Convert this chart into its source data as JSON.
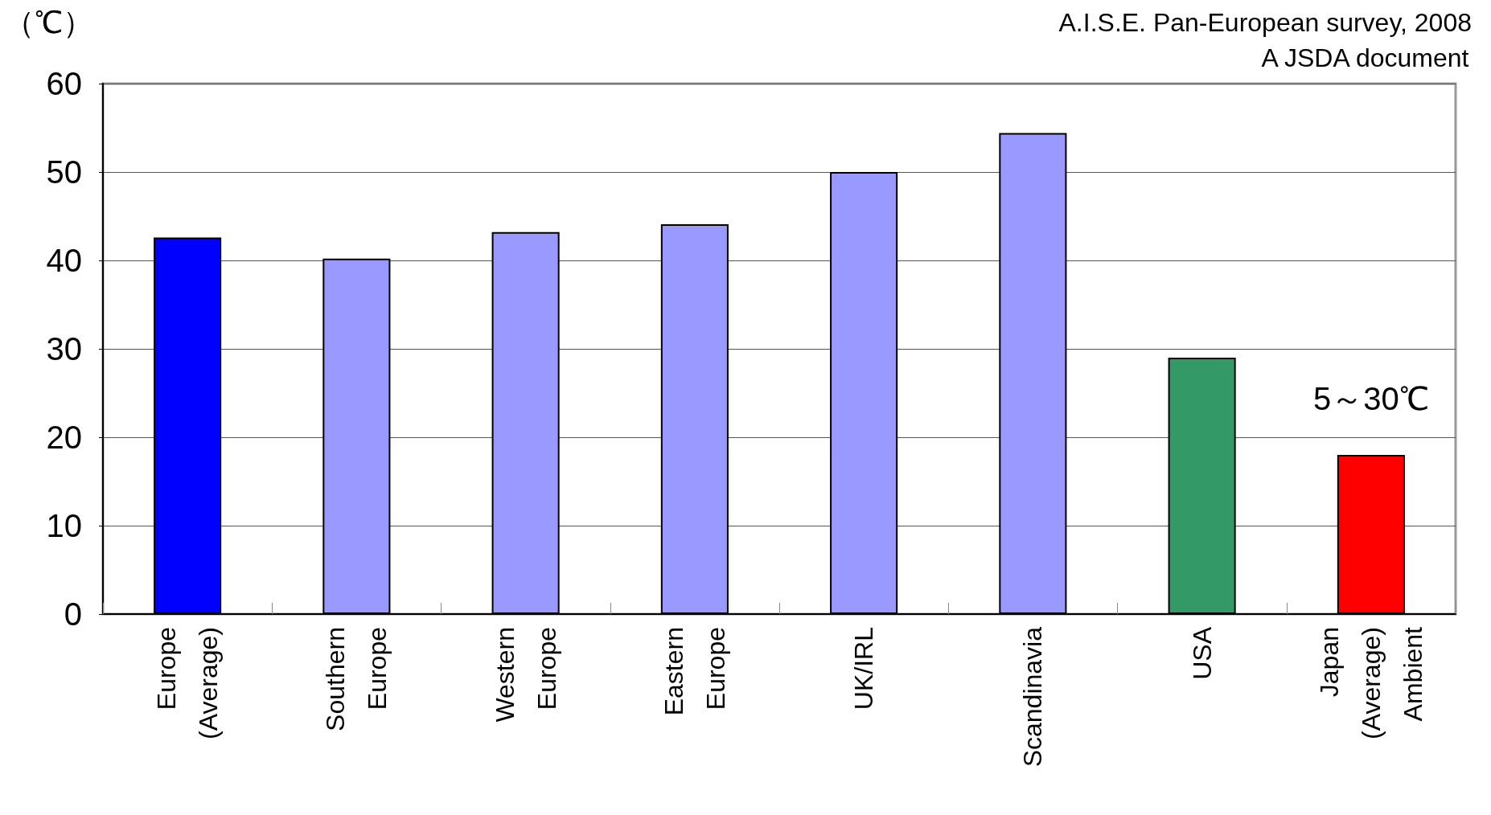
{
  "chart_data": {
    "type": "bar",
    "ylabel": "（℃）",
    "categories": [
      "Europe (Average)",
      "Southern Europe",
      "Western Europe",
      "Eastern Europe",
      "UK/IRL",
      "Scandinavia",
      "USA",
      "Japan (Average) Ambient"
    ],
    "values": [
      42.6,
      40.2,
      43.2,
      44.1,
      50,
      54.4,
      29,
      18
    ],
    "colors": [
      "#0000ff",
      "#9999ff",
      "#9999ff",
      "#9999ff",
      "#9999ff",
      "#9999ff",
      "#339966",
      "#ff0000"
    ],
    "ylim": [
      0,
      60
    ],
    "yticks": [
      0,
      10,
      20,
      30,
      40,
      50,
      60
    ],
    "grid": "y",
    "annotations": [
      "A.I.S.E. Pan-European survey, 2008",
      "A JSDA document",
      "5～30℃"
    ]
  }
}
